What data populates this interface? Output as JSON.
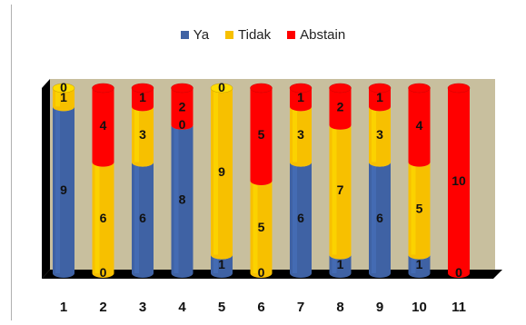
{
  "chart_data": {
    "type": "bar",
    "stacked": true,
    "style": "3d-cylinder",
    "categories": [
      "1",
      "2",
      "3",
      "4",
      "5",
      "6",
      "7",
      "8",
      "9",
      "10",
      "11"
    ],
    "series": [
      {
        "name": "Ya",
        "color": "#3f62a4",
        "values": [
          9,
          0,
          6,
          8,
          1,
          0,
          6,
          1,
          6,
          1,
          0
        ]
      },
      {
        "name": "Tidak",
        "color": "#f7c000",
        "values": [
          1,
          6,
          3,
          0,
          9,
          5,
          3,
          7,
          3,
          5,
          0
        ]
      },
      {
        "name": "Abstain",
        "color": "#ff0000",
        "values": [
          0,
          4,
          1,
          2,
          0,
          5,
          1,
          2,
          1,
          4,
          10
        ]
      }
    ],
    "ylim": [
      0,
      10
    ],
    "legend": "top-center",
    "grid": false
  },
  "colors": {
    "wall": "#c8bf9e",
    "floor": "#000000",
    "label": "#111111"
  }
}
